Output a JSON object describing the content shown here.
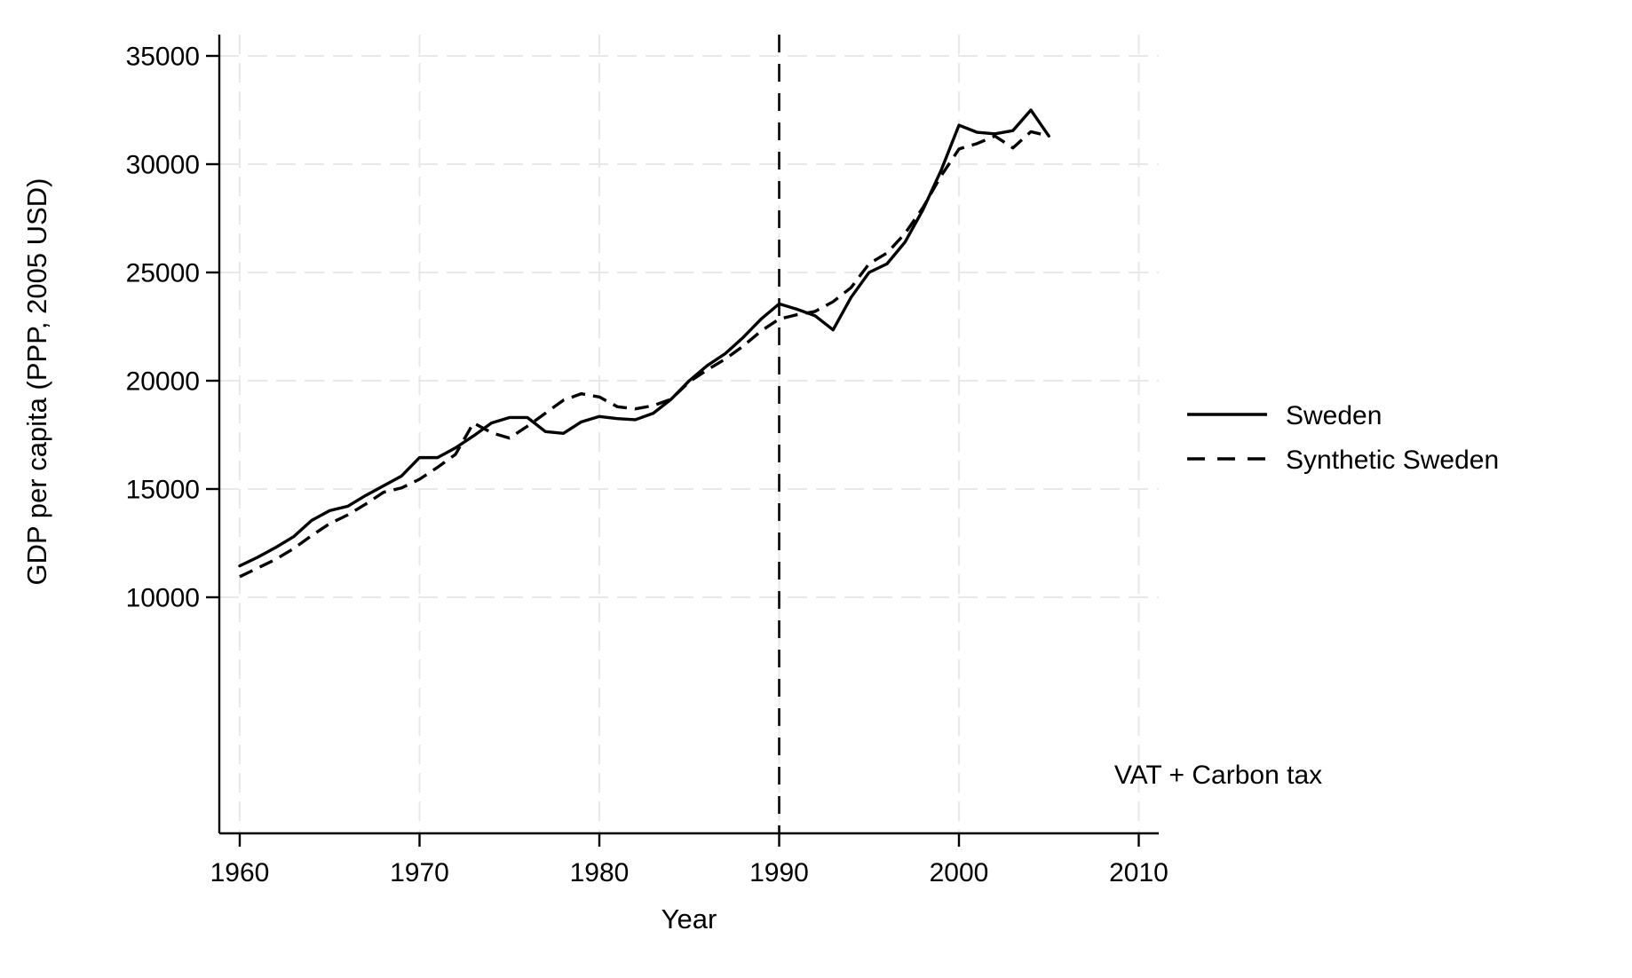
{
  "chart_data": {
    "type": "line",
    "title": "",
    "x_axis": {
      "label": "Year",
      "ticks": [
        1960,
        1970,
        1980,
        1990,
        2000,
        2010
      ],
      "range": [
        1958.9,
        2011.1
      ]
    },
    "y_axis": {
      "label": "GDP per capita (PPP, 2005 USD)",
      "ticks": [
        10000,
        15000,
        20000,
        25000,
        30000,
        35000
      ],
      "range": [
        -900,
        36000
      ]
    },
    "grid": true,
    "legend_position": "right",
    "x": [
      1960,
      1961,
      1962,
      1963,
      1964,
      1965,
      1966,
      1967,
      1968,
      1969,
      1970,
      1971,
      1972,
      1973,
      1974,
      1975,
      1976,
      1977,
      1978,
      1979,
      1980,
      1981,
      1982,
      1983,
      1984,
      1985,
      1986,
      1987,
      1988,
      1989,
      1990,
      1991,
      1992,
      1993,
      1994,
      1995,
      1996,
      1997,
      1998,
      1999,
      2000,
      2001,
      2002,
      2003,
      2004,
      2005
    ],
    "series": [
      {
        "name": "Sweden",
        "line_style": "solid",
        "values": [
          11450,
          11850,
          12300,
          12800,
          13550,
          14000,
          14200,
          14700,
          15150,
          15600,
          16450,
          16450,
          16900,
          17450,
          18050,
          18300,
          18300,
          17650,
          17570,
          18100,
          18350,
          18250,
          18200,
          18500,
          19150,
          20000,
          20700,
          21250,
          22000,
          22850,
          23550,
          23300,
          23000,
          22350,
          23850,
          25000,
          25400,
          26400,
          27900,
          29700,
          31800,
          31475,
          31400,
          31550,
          32500,
          31300
        ]
      },
      {
        "name": "Synthetic Sweden",
        "line_style": "dashed",
        "values": [
          10950,
          11350,
          11750,
          12250,
          12850,
          13400,
          13800,
          14300,
          14850,
          15050,
          15450,
          16000,
          16600,
          18050,
          17600,
          17350,
          17900,
          18500,
          19100,
          19400,
          19250,
          18800,
          18700,
          18850,
          19150,
          19950,
          20500,
          21000,
          21600,
          22300,
          22850,
          23050,
          23200,
          23650,
          24300,
          25400,
          25900,
          26800,
          28000,
          29450,
          30700,
          30950,
          31300,
          30750,
          31500,
          31300
        ]
      }
    ],
    "vline": {
      "x": 1990,
      "style": "dashed",
      "label": "VAT + Carbon tax"
    }
  },
  "colors": {
    "line": "#000000",
    "axis": "#000000",
    "grid": "#e8e8e8",
    "background": "#ffffff"
  }
}
